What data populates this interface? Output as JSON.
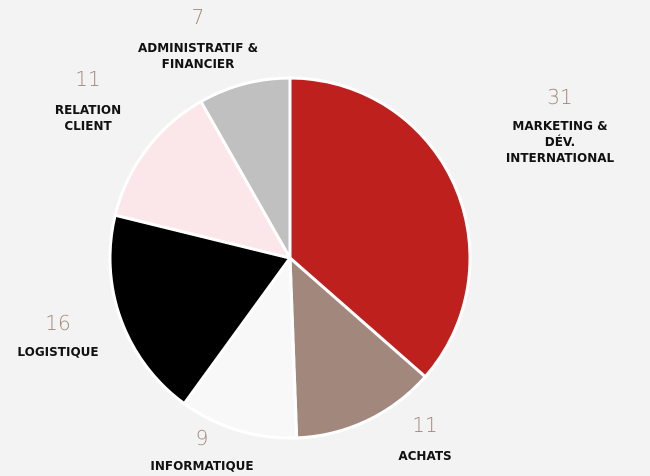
{
  "chart_data": {
    "type": "pie",
    "categories": [
      "MARKETING &\nDÉV. INTERNATIONAL",
      "ACHATS",
      "INFORMATIQUE",
      "LOGISTIQUE",
      "RELATION\nCLIENT",
      "ADMINISTRATIF &\nFINANCIER"
    ],
    "values": [
      31,
      11,
      9,
      16,
      11,
      7
    ],
    "colors": [
      "#bd201d",
      "#a2887c",
      "#f8f8f8",
      "#000000",
      "#fbe6ea",
      "#c0c0c0"
    ]
  }
}
